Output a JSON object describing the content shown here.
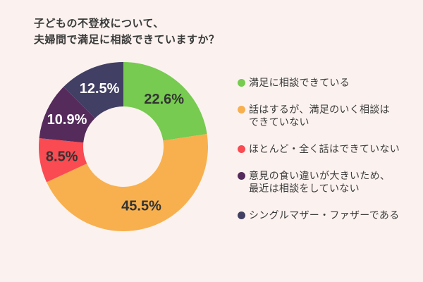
{
  "background": "#FBF2EF",
  "title": {
    "line1": "子どもの不登校について、",
    "line2": "夫婦間で満足に相談できていますか？",
    "color": "#3A3A3A"
  },
  "chart_data": {
    "type": "pie",
    "subtype": "donut",
    "title": "子どもの不登校について、夫婦間で満足に相談できていますか？",
    "unit": "%",
    "start_angle_deg": 0,
    "direction": "clockwise",
    "inner_radius_ratio": 0.475,
    "legend_position": "right",
    "categories": [
      "満足に相談できている",
      "話はするが、満足のいく相談はできていない",
      "ほとんど・全く話はできていない",
      "意見の食い違いが大きいため、最近は相談をしていない",
      "シングルマザー・ファザーである"
    ],
    "values": [
      22.6,
      45.5,
      8.5,
      10.9,
      12.5
    ],
    "slices": [
      {
        "label": "満足に相談できている",
        "value": 22.6,
        "display": "22.6%",
        "color": "#76CB50",
        "label_color": "#333333"
      },
      {
        "label": "話はするが、満足のいく相談はできていない",
        "value": 45.5,
        "display": "45.5%",
        "color": "#F8B04E",
        "label_color": "#333333"
      },
      {
        "label": "ほとんど・全く話はできていない",
        "value": 8.5,
        "display": "8.5%",
        "color": "#FA4A52",
        "label_color": "#333333"
      },
      {
        "label": "意見の食い違いが大きいため、最近は相談をしていない",
        "value": 10.9,
        "display": "10.9%",
        "color": "#552B5C",
        "label_color": "#FFFFFF"
      },
      {
        "label": "シングルマザー・ファザーである",
        "value": 12.5,
        "display": "12.5%",
        "color": "#413F63",
        "label_color": "#FFFFFF"
      }
    ]
  },
  "legend": {
    "items": [
      {
        "color": "#76CB50",
        "lines": [
          "満足に相談できている"
        ]
      },
      {
        "color": "#F8B04E",
        "lines": [
          "話はするが、満足のいく相談は",
          "できていない"
        ]
      },
      {
        "color": "#FA4A52",
        "lines": [
          "ほとんど・全く話はできていない"
        ]
      },
      {
        "color": "#552B5C",
        "lines": [
          "意見の食い違いが大きいため、",
          "最近は相談をしていない"
        ]
      },
      {
        "color": "#413F63",
        "lines": [
          "シングルマザー・ファザーである"
        ]
      }
    ]
  }
}
